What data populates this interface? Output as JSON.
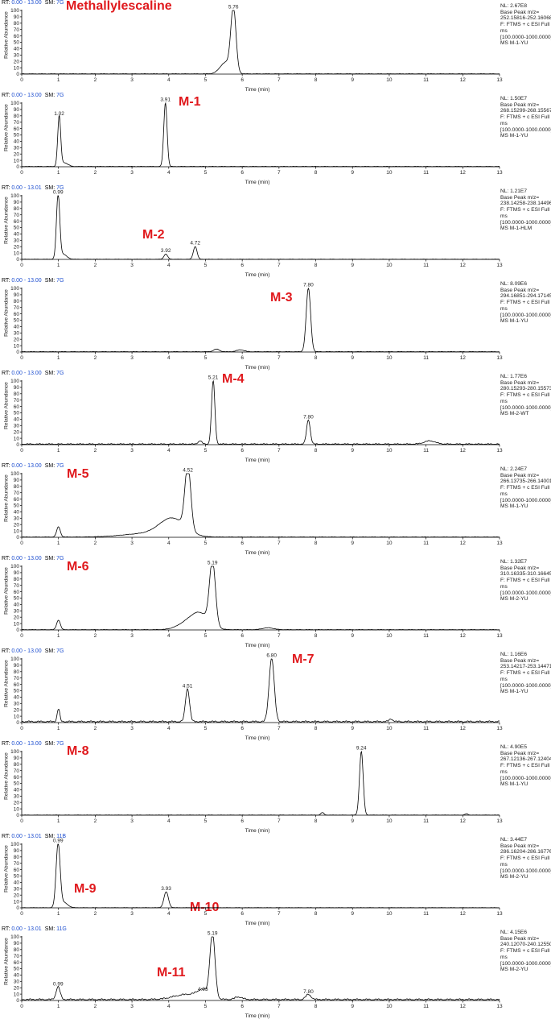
{
  "chart_data": [
    {
      "type": "line",
      "compound_label": "Methallylescaline",
      "rt_range": "0.00 - 13.00",
      "sm": "7G",
      "nl": "NL: 2.67E8",
      "base_peak": "Base Peak m/z=",
      "mz_range": "252.15816-252.16068",
      "scan_filter": [
        "F: FTMS + c ESI Full",
        "ms"
      ],
      "mass_range": "[100.0000-1000.0000]",
      "file": "MS M-1-YU",
      "xlabel": "Time (min)",
      "ylabel": "Relative Abundance",
      "xlim": [
        0,
        13
      ],
      "ylim": [
        0,
        100
      ],
      "x_ticks": [
        0,
        1,
        2,
        3,
        4,
        5,
        6,
        7,
        8,
        9,
        10,
        11,
        12,
        13
      ],
      "y_ticks": [
        0,
        10,
        20,
        30,
        40,
        50,
        60,
        70,
        80,
        90,
        100
      ],
      "peaks": [
        {
          "x": 5.76,
          "y": 100,
          "w": 0.07,
          "label": "5.76"
        },
        {
          "x": 5.55,
          "y": 18,
          "w": 0.15
        }
      ],
      "baseline": 0.5
    },
    {
      "type": "line",
      "compound_label": "M-1",
      "rt_range": "0.00 - 13.00",
      "sm": "7G",
      "nl": "NL: 1.50E7",
      "base_peak": "Base Peak m/z=",
      "mz_range": "268.15299-268.15567",
      "scan_filter": [
        "F: FTMS + c ESI Full",
        "ms"
      ],
      "mass_range": "[100.0000-1000.0000]",
      "file": "MS M-1-YU",
      "xlabel": "Time (min)",
      "ylabel": "Relative Abundance",
      "xlim": [
        0,
        13
      ],
      "ylim": [
        0,
        100
      ],
      "x_ticks": [
        0,
        1,
        2,
        3,
        4,
        5,
        6,
        7,
        8,
        9,
        10,
        11,
        12,
        13
      ],
      "y_ticks": [
        0,
        10,
        20,
        30,
        40,
        50,
        60,
        70,
        80,
        90,
        100
      ],
      "peaks": [
        {
          "x": 1.02,
          "y": 78,
          "w": 0.04,
          "label": "1.02"
        },
        {
          "x": 1.15,
          "y": 6,
          "w": 0.1
        },
        {
          "x": 3.91,
          "y": 100,
          "w": 0.045,
          "label": "3.91"
        }
      ],
      "baseline": 0.5
    },
    {
      "type": "line",
      "compound_label": "M-2",
      "rt_range": "0.00 - 13.01",
      "sm": "7G",
      "nl": "NL: 1.21E7",
      "base_peak": "Base Peak m/z=",
      "mz_range": "238.14258-238.14496",
      "scan_filter": [
        "F: FTMS + c ESI Full",
        "ms"
      ],
      "mass_range": "[100.0000-1000.0000]",
      "file": "MS M-1-HLM",
      "xlabel": "Time (min)",
      "ylabel": "Relative Abundance",
      "xlim": [
        0,
        13
      ],
      "ylim": [
        0,
        100
      ],
      "x_ticks": [
        0,
        1,
        2,
        3,
        4,
        5,
        6,
        7,
        8,
        9,
        10,
        11,
        12,
        13
      ],
      "y_ticks": [
        0,
        10,
        20,
        30,
        40,
        50,
        60,
        70,
        80,
        90,
        100
      ],
      "peaks": [
        {
          "x": 0.99,
          "y": 100,
          "w": 0.045,
          "label": "0.99"
        },
        {
          "x": 1.12,
          "y": 8,
          "w": 0.1
        },
        {
          "x": 3.92,
          "y": 8,
          "w": 0.05,
          "label": "3.92"
        },
        {
          "x": 4.72,
          "y": 20,
          "w": 0.05,
          "label": "4.72"
        }
      ],
      "baseline": 0.3
    },
    {
      "type": "line",
      "compound_label": "M-3",
      "rt_range": "0.00 - 13.00",
      "sm": "7G",
      "nl": "NL: 8.09E6",
      "base_peak": "Base Peak m/z=",
      "mz_range": "294.16851-294.17145",
      "scan_filter": [
        "F: FTMS + c ESI Full",
        "ms"
      ],
      "mass_range": "[100.0000-1000.0000]",
      "file": "MS M-1-YU",
      "xlabel": "Time (min)",
      "ylabel": "Relative Abundance",
      "xlim": [
        0,
        13
      ],
      "ylim": [
        0,
        100
      ],
      "x_ticks": [
        0,
        1,
        2,
        3,
        4,
        5,
        6,
        7,
        8,
        9,
        10,
        11,
        12,
        13
      ],
      "y_ticks": [
        0,
        10,
        20,
        30,
        40,
        50,
        60,
        70,
        80,
        90,
        100
      ],
      "peaks": [
        {
          "x": 7.8,
          "y": 100,
          "w": 0.06,
          "label": "7.80"
        },
        {
          "x": 5.3,
          "y": 4,
          "w": 0.08
        },
        {
          "x": 5.95,
          "y": 3,
          "w": 0.1
        }
      ],
      "baseline": 0.6
    },
    {
      "type": "line",
      "compound_label": "M-4",
      "rt_range": "0.00 - 13.00",
      "sm": "7G",
      "nl": "NL: 1.77E6",
      "base_peak": "Base Peak m/z=",
      "mz_range": "280.15293-280.15573",
      "scan_filter": [
        "F: FTMS + c ESI Full",
        "ms"
      ],
      "mass_range": "[100.0000-1000.0000]",
      "file": "MS M-2-WT",
      "xlabel": "Time (min)",
      "ylabel": "Relative Abundance",
      "xlim": [
        0,
        13
      ],
      "ylim": [
        0,
        100
      ],
      "x_ticks": [
        0,
        1,
        2,
        3,
        4,
        5,
        6,
        7,
        8,
        9,
        10,
        11,
        12,
        13
      ],
      "y_ticks": [
        0,
        10,
        20,
        30,
        40,
        50,
        60,
        70,
        80,
        90,
        100
      ],
      "peaks": [
        {
          "x": 5.21,
          "y": 100,
          "w": 0.045,
          "label": "5.21"
        },
        {
          "x": 4.85,
          "y": 5,
          "w": 0.05
        },
        {
          "x": 7.8,
          "y": 38,
          "w": 0.05,
          "label": "7.80"
        },
        {
          "x": 11.1,
          "y": 5,
          "w": 0.15
        }
      ],
      "baseline": 1.2
    },
    {
      "type": "line",
      "compound_label": "M-5",
      "rt_range": "0.00 - 13.00",
      "sm": "7G",
      "nl": "NL: 2.24E7",
      "base_peak": "Base Peak m/z=",
      "mz_range": "266.13735-266.14001",
      "scan_filter": [
        "F: FTMS + c ESI Full",
        "ms"
      ],
      "mass_range": "[100.0000-1000.0000]",
      "file": "MS M-1-YU",
      "xlabel": "Time (min)",
      "ylabel": "Relative Abundance",
      "xlim": [
        0,
        13
      ],
      "ylim": [
        0,
        100
      ],
      "x_ticks": [
        0,
        1,
        2,
        3,
        4,
        5,
        6,
        7,
        8,
        9,
        10,
        11,
        12,
        13
      ],
      "y_ticks": [
        0,
        10,
        20,
        30,
        40,
        50,
        60,
        70,
        80,
        90,
        100
      ],
      "peaks": [
        {
          "x": 1.0,
          "y": 16,
          "w": 0.05
        },
        {
          "x": 4.52,
          "y": 100,
          "w": 0.08,
          "label": "4.52"
        },
        {
          "x": 4.1,
          "y": 28,
          "w": 0.35
        },
        {
          "x": 3.3,
          "y": 5,
          "w": 0.6
        }
      ],
      "baseline": 0.5
    },
    {
      "type": "line",
      "compound_label": "M-6",
      "rt_range": "0.00 - 13.00",
      "sm": "7G",
      "nl": "NL: 1.32E7",
      "base_peak": "Base Peak m/z=",
      "mz_range": "310.16335-310.16645",
      "scan_filter": [
        "F: FTMS + c ESI Full",
        "ms"
      ],
      "mass_range": "[100.0000-1000.0000]",
      "file": "MS M-2-YU",
      "xlabel": "Time (min)",
      "ylabel": "Relative Abundance",
      "xlim": [
        0,
        13
      ],
      "ylim": [
        0,
        100
      ],
      "x_ticks": [
        0,
        1,
        2,
        3,
        4,
        5,
        6,
        7,
        8,
        9,
        10,
        11,
        12,
        13
      ],
      "y_ticks": [
        0,
        10,
        20,
        30,
        40,
        50,
        60,
        70,
        80,
        90,
        100
      ],
      "peaks": [
        {
          "x": 1.0,
          "y": 15,
          "w": 0.05
        },
        {
          "x": 5.19,
          "y": 100,
          "w": 0.08,
          "label": "5.19"
        },
        {
          "x": 4.85,
          "y": 25,
          "w": 0.25
        },
        {
          "x": 4.45,
          "y": 8,
          "w": 0.25
        },
        {
          "x": 6.7,
          "y": 3,
          "w": 0.15
        }
      ],
      "baseline": 0.5
    },
    {
      "type": "line",
      "compound_label": "M-7",
      "rt_range": "0.00 - 13.00",
      "sm": "7G",
      "nl": "NL: 1.16E6",
      "base_peak": "Base Peak m/z=",
      "mz_range": "253.14217-253.14471",
      "scan_filter": [
        "F: FTMS + c ESI Full",
        "ms"
      ],
      "mass_range": "[100.0000-1000.0000]",
      "file": "MS M-1-YU",
      "xlabel": "Time (min)",
      "ylabel": "Relative Abundance",
      "xlim": [
        0,
        13
      ],
      "ylim": [
        0,
        100
      ],
      "x_ticks": [
        0,
        1,
        2,
        3,
        4,
        5,
        6,
        7,
        8,
        9,
        10,
        11,
        12,
        13
      ],
      "y_ticks": [
        0,
        10,
        20,
        30,
        40,
        50,
        60,
        70,
        80,
        90,
        100
      ],
      "peaks": [
        {
          "x": 1.0,
          "y": 20,
          "w": 0.035
        },
        {
          "x": 4.51,
          "y": 52,
          "w": 0.055,
          "label": "4.51"
        },
        {
          "x": 6.8,
          "y": 100,
          "w": 0.07,
          "label": "6.80"
        },
        {
          "x": 10.05,
          "y": 4,
          "w": 0.05
        }
      ],
      "baseline": 2.0
    },
    {
      "type": "line",
      "compound_label": "M-8",
      "rt_range": "0.00 - 13.00",
      "sm": "7G",
      "nl": "NL: 4.90E5",
      "base_peak": "Base Peak m/z=",
      "mz_range": "267.12136-267.12404",
      "scan_filter": [
        "F: FTMS + c ESI Full",
        "ms"
      ],
      "mass_range": "[100.0000-1000.0000]",
      "file": "MS M-1-YU",
      "xlabel": "Time (min)",
      "ylabel": "Relative Abundance",
      "xlim": [
        0,
        13
      ],
      "ylim": [
        0,
        100
      ],
      "x_ticks": [
        0,
        1,
        2,
        3,
        4,
        5,
        6,
        7,
        8,
        9,
        10,
        11,
        12,
        13
      ],
      "y_ticks": [
        0,
        10,
        20,
        30,
        40,
        50,
        60,
        70,
        80,
        90,
        100
      ],
      "peaks": [
        {
          "x": 9.24,
          "y": 100,
          "w": 0.05,
          "label": "9.24"
        },
        {
          "x": 8.18,
          "y": 4,
          "w": 0.04
        },
        {
          "x": 12.1,
          "y": 2,
          "w": 0.04
        }
      ],
      "baseline": 0.3
    },
    {
      "type": "line",
      "compound_label": [
        "M-9",
        "M-10"
      ],
      "rt_range": "0.00 - 13.01",
      "sm": "11B",
      "nl": "NL: 3.44E7",
      "base_peak": "Base Peak m/z=",
      "mz_range": "286.16204-286.16776",
      "scan_filter": [
        "F: FTMS + c ESI Full",
        "ms"
      ],
      "mass_range": "[100.0000-1000.0000]",
      "file": "MS M-2-YU",
      "xlabel": "Time (min)",
      "ylabel": "Relative Abundance",
      "xlim": [
        0,
        13
      ],
      "ylim": [
        0,
        100
      ],
      "x_ticks": [
        0,
        1,
        2,
        3,
        4,
        5,
        6,
        7,
        8,
        9,
        10,
        11,
        12,
        13
      ],
      "y_ticks": [
        0,
        10,
        20,
        30,
        40,
        50,
        60,
        70,
        80,
        90,
        100
      ],
      "peaks": [
        {
          "x": 0.99,
          "y": 100,
          "w": 0.055,
          "label": "0.99"
        },
        {
          "x": 1.15,
          "y": 8,
          "w": 0.1
        },
        {
          "x": 3.93,
          "y": 25,
          "w": 0.06,
          "label": "3.93"
        }
      ],
      "baseline": 0.3
    },
    {
      "type": "line",
      "compound_label": "M-11",
      "rt_range": "0.00 - 13.01",
      "sm": "11G",
      "nl": "NL: 4.15E6",
      "base_peak": "Base Peak m/z=",
      "mz_range": "240.12070-240.12550",
      "scan_filter": [
        "F: FTMS + c ESI Full",
        "ms"
      ],
      "mass_range": "[100.0000-1000.0000]",
      "file": "MS M-2-YU",
      "xlabel": "Time (min)",
      "ylabel": "Relative Abundance",
      "xlim": [
        0,
        13
      ],
      "ylim": [
        0,
        100
      ],
      "x_ticks": [
        0,
        1,
        2,
        3,
        4,
        5,
        6,
        7,
        8,
        9,
        10,
        11,
        12,
        13
      ],
      "y_ticks": [
        0,
        10,
        20,
        30,
        40,
        50,
        60,
        70,
        80,
        90,
        100
      ],
      "peaks": [
        {
          "x": 0.99,
          "y": 20,
          "w": 0.055,
          "label": "0.99"
        },
        {
          "x": 5.19,
          "y": 100,
          "w": 0.07,
          "label": "5.19"
        },
        {
          "x": 4.93,
          "y": 12,
          "w": 0.15,
          "label": "4.93"
        },
        {
          "x": 4.5,
          "y": 8,
          "w": 0.35
        },
        {
          "x": 7.8,
          "y": 8,
          "w": 0.07,
          "label": "7.80"
        },
        {
          "x": 5.9,
          "y": 4,
          "w": 0.1
        }
      ],
      "baseline": 2.0
    }
  ]
}
